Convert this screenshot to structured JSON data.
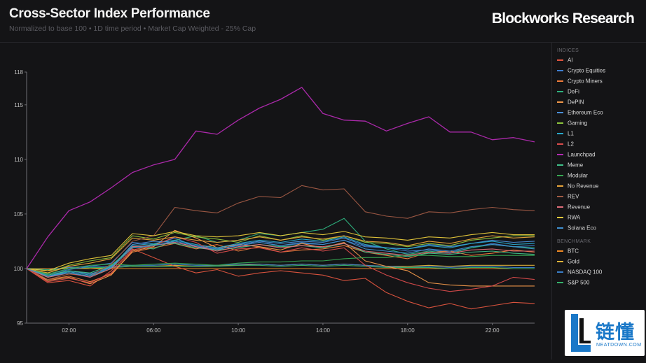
{
  "header": {
    "title": "Cross-Sector Index Performance",
    "subtitle": "Normalized to base 100 • 1D time period • Market Cap Weighted - 25% Cap",
    "brand": "Blockworks Research"
  },
  "legend": {
    "indices_heading": "INDICES",
    "benchmark_heading": "BENCHMARK"
  },
  "watermark": {
    "cn": "链懂",
    "en": "NEATDOWN.COM"
  },
  "chart_data": {
    "type": "line",
    "x": [
      "00:00",
      "01:00",
      "02:00",
      "03:00",
      "04:00",
      "05:00",
      "06:00",
      "07:00",
      "08:00",
      "09:00",
      "10:00",
      "11:00",
      "12:00",
      "13:00",
      "14:00",
      "15:00",
      "16:00",
      "17:00",
      "18:00",
      "19:00",
      "20:00",
      "21:00",
      "22:00",
      "23:00",
      "24:00"
    ],
    "x_tick_labels": [
      "02:00",
      "06:00",
      "10:00",
      "14:00",
      "18:00",
      "22:00"
    ],
    "y_ticks": [
      95,
      100,
      105,
      110,
      115,
      118
    ],
    "ylim": [
      95,
      118
    ],
    "grid": false,
    "legend_position": "right",
    "series": [
      {
        "name": "AI",
        "group": "indices",
        "color": "#e2553f",
        "values": [
          100,
          98.7,
          98.9,
          98.4,
          99.8,
          101.8,
          101.0,
          100.2,
          99.6,
          99.9,
          99.3,
          99.6,
          99.8,
          99.6,
          99.4,
          98.9,
          99.1,
          97.8,
          97.0,
          96.4,
          96.8,
          96.3,
          96.6,
          96.9,
          96.8
        ]
      },
      {
        "name": "Crypto Equities",
        "group": "indices",
        "color": "#3f7fd1",
        "values": [
          100,
          99.5,
          99.9,
          100.2,
          100.5,
          102.4,
          102.2,
          102.8,
          102.0,
          101.8,
          102.1,
          102.4,
          102.1,
          102.3,
          102.2,
          102.6,
          102.0,
          101.9,
          101.6,
          101.7,
          101.5,
          101.9,
          102.3,
          102.0,
          102.1
        ]
      },
      {
        "name": "Crypto Miners",
        "group": "indices",
        "color": "#f07c3c",
        "values": [
          100,
          99.0,
          99.3,
          98.8,
          99.5,
          101.5,
          101.9,
          102.3,
          101.8,
          102.2,
          101.6,
          102.0,
          101.5,
          101.7,
          101.8,
          102.1,
          101.5,
          101.2,
          100.9,
          101.5,
          101.6,
          101.2,
          101.4,
          101.7,
          101.5
        ]
      },
      {
        "name": "DeFi",
        "group": "indices",
        "color": "#2eb37f",
        "values": [
          100,
          99.2,
          99.6,
          99.3,
          100.0,
          102.0,
          101.8,
          102.6,
          103.0,
          102.4,
          102.6,
          103.2,
          103.0,
          103.3,
          103.6,
          104.6,
          102.5,
          101.8,
          101.3,
          101.6,
          101.4,
          101.9,
          102.2,
          102.0,
          101.9
        ]
      },
      {
        "name": "DePIN",
        "group": "indices",
        "color": "#f2994a",
        "values": [
          100,
          98.9,
          99.2,
          98.6,
          99.4,
          101.6,
          102.0,
          103.5,
          102.8,
          101.9,
          102.2,
          102.0,
          101.7,
          102.3,
          101.9,
          102.4,
          100.7,
          100.2,
          99.8,
          98.7,
          98.5,
          98.4,
          98.4,
          98.4,
          98.4
        ]
      },
      {
        "name": "Ethereum Eco",
        "group": "indices",
        "color": "#4a8ed8",
        "values": [
          100,
          99.3,
          99.8,
          99.5,
          100.1,
          102.2,
          102.5,
          102.4,
          102.0,
          101.7,
          102.2,
          102.5,
          102.3,
          102.5,
          102.4,
          102.8,
          102.1,
          101.9,
          101.8,
          102.2,
          102.0,
          102.3,
          102.6,
          102.4,
          102.5
        ]
      },
      {
        "name": "Gaming",
        "group": "indices",
        "color": "#8cc43c",
        "values": [
          100,
          99.6,
          100.3,
          100.7,
          101.0,
          103.0,
          102.7,
          103.3,
          102.9,
          102.7,
          102.4,
          103.0,
          102.6,
          103.0,
          102.6,
          103.0,
          102.4,
          102.3,
          102.0,
          102.3,
          102.1,
          102.6,
          102.8,
          103.0,
          103.0
        ]
      },
      {
        "name": "L1",
        "group": "indices",
        "color": "#29a7c9",
        "values": [
          100,
          99.3,
          99.7,
          99.4,
          100.2,
          102.1,
          102.3,
          102.6,
          102.2,
          101.9,
          102.3,
          102.6,
          102.4,
          102.7,
          102.5,
          102.9,
          102.2,
          101.9,
          101.8,
          102.1,
          101.9,
          102.3,
          102.5,
          102.2,
          102.3
        ]
      },
      {
        "name": "L2",
        "group": "indices",
        "color": "#d94b4b",
        "values": [
          100,
          98.8,
          99.1,
          98.7,
          99.6,
          101.7,
          102.1,
          102.9,
          102.4,
          101.4,
          101.8,
          101.9,
          101.5,
          101.9,
          101.6,
          101.9,
          100.3,
          99.4,
          98.7,
          98.2,
          97.9,
          98.1,
          98.4,
          99.2,
          99.0
        ]
      },
      {
        "name": "Launchpad",
        "group": "indices",
        "color": "#b32ab2",
        "values": [
          100,
          102.9,
          105.3,
          106.1,
          107.4,
          108.8,
          109.5,
          110.0,
          112.6,
          112.3,
          113.6,
          114.7,
          115.5,
          116.6,
          114.2,
          113.6,
          113.5,
          112.6,
          113.3,
          113.9,
          112.5,
          112.5,
          111.8,
          112.0,
          111.6
        ]
      },
      {
        "name": "Meme",
        "group": "indices",
        "color": "#40c08a",
        "values": [
          100,
          99.4,
          99.8,
          99.6,
          100.3,
          101.9,
          102.2,
          102.3,
          101.9,
          101.7,
          101.9,
          102.2,
          102.0,
          102.1,
          101.9,
          102.3,
          101.5,
          101.3,
          101.1,
          101.4,
          101.3,
          101.5,
          101.6,
          101.4,
          101.3
        ]
      },
      {
        "name": "Modular",
        "group": "indices",
        "color": "#36a852",
        "values": [
          100,
          99.5,
          100.0,
          100.3,
          100.4,
          100.3,
          100.4,
          100.5,
          100.4,
          100.3,
          100.5,
          100.6,
          100.6,
          100.7,
          100.7,
          100.9,
          101.0,
          101.0,
          101.2,
          101.2,
          101.1,
          101.1,
          101.2,
          101.2,
          101.2
        ]
      },
      {
        "name": "No Revenue",
        "group": "indices",
        "color": "#e8a43a",
        "values": [
          100,
          99.6,
          100.2,
          100.5,
          100.9,
          102.8,
          102.6,
          102.9,
          102.6,
          102.4,
          102.6,
          102.9,
          102.6,
          102.9,
          102.7,
          103.0,
          102.5,
          102.4,
          102.1,
          102.5,
          102.3,
          102.7,
          103.0,
          102.8,
          102.9
        ]
      },
      {
        "name": "REV",
        "group": "indices",
        "color": "#a05a44",
        "values": [
          100,
          99.0,
          99.5,
          99.3,
          100.4,
          102.5,
          103.0,
          105.6,
          105.3,
          105.1,
          106.0,
          106.6,
          106.5,
          107.6,
          107.2,
          107.3,
          105.2,
          104.8,
          104.6,
          105.2,
          105.1,
          105.4,
          105.6,
          105.4,
          105.3
        ]
      },
      {
        "name": "Revenue",
        "group": "indices",
        "color": "#e06d7a",
        "values": [
          100,
          99.2,
          99.6,
          99.2,
          100.0,
          102.0,
          102.1,
          102.4,
          102.0,
          101.6,
          102.0,
          102.2,
          101.9,
          102.1,
          102.0,
          102.3,
          101.6,
          101.4,
          101.2,
          101.5,
          101.4,
          101.7,
          101.8,
          101.6,
          101.6
        ]
      },
      {
        "name": "RWA",
        "group": "indices",
        "color": "#e7c93b",
        "values": [
          100,
          99.8,
          100.5,
          100.9,
          101.2,
          103.2,
          103.0,
          103.4,
          103.0,
          102.9,
          103.0,
          103.3,
          103.0,
          103.3,
          103.1,
          103.4,
          102.9,
          102.8,
          102.6,
          102.9,
          102.8,
          103.1,
          103.3,
          103.1,
          103.1
        ]
      },
      {
        "name": "Solana Eco",
        "group": "indices",
        "color": "#3f8fcf",
        "values": [
          100,
          99.3,
          99.6,
          99.3,
          100.1,
          101.9,
          102.1,
          102.5,
          102.1,
          101.8,
          102.1,
          102.4,
          102.1,
          102.4,
          102.2,
          102.6,
          101.8,
          101.6,
          101.4,
          101.8,
          101.6,
          102.0,
          102.2,
          102.0,
          101.8
        ]
      },
      {
        "name": "BTC",
        "group": "benchmark",
        "color": "#f08a24",
        "values": [
          100,
          100,
          100,
          100,
          100,
          100,
          100,
          100,
          100,
          100,
          100,
          100,
          100,
          100,
          100,
          100,
          100,
          100,
          100,
          100,
          100,
          100,
          100,
          100,
          100
        ]
      },
      {
        "name": "Gold",
        "group": "benchmark",
        "color": "#e0b43a",
        "values": [
          100,
          99.8,
          100.1,
          100.0,
          100.1,
          100.2,
          100.2,
          100.3,
          100.2,
          100.3,
          100.3,
          100.4,
          100.3,
          100.4,
          100.3,
          100.4,
          100.3,
          100.2,
          100.2,
          100.3,
          100.2,
          100.3,
          100.3,
          100.3,
          100.3
        ]
      },
      {
        "name": "NASDAQ 100",
        "group": "benchmark",
        "color": "#3a7ec8",
        "values": [
          100,
          99.9,
          100.1,
          100.2,
          100.2,
          100.3,
          100.3,
          100.4,
          100.3,
          100.3,
          100.4,
          100.4,
          100.3,
          100.4,
          100.3,
          100.4,
          100.3,
          100.2,
          100.1,
          100.2,
          100.1,
          100.2,
          100.2,
          100.1,
          100.1
        ]
      },
      {
        "name": "S&P 500",
        "group": "benchmark",
        "color": "#34b06a",
        "values": [
          100,
          99.9,
          100.0,
          100.1,
          100.1,
          100.2,
          100.2,
          100.2,
          100.2,
          100.2,
          100.3,
          100.3,
          100.2,
          100.3,
          100.2,
          100.3,
          100.2,
          100.1,
          100.1,
          100.1,
          100.0,
          100.1,
          100.1,
          100.0,
          100.0
        ]
      }
    ]
  }
}
